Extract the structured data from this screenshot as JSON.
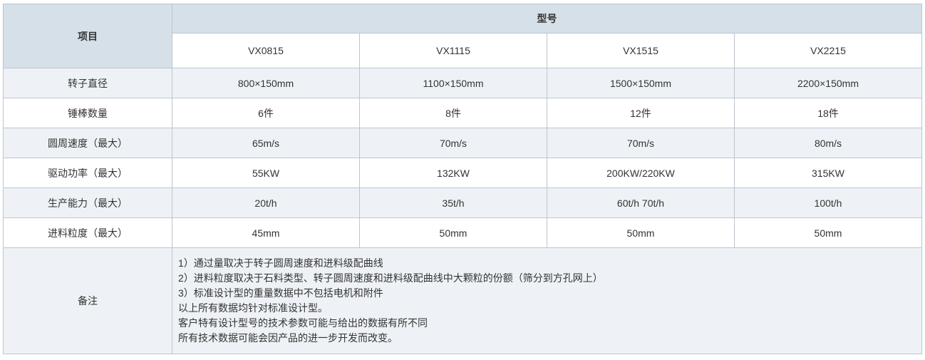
{
  "table": {
    "corner_header": "项目",
    "model_group_header": "型号",
    "models": [
      "VX0815",
      "VX1115",
      "VX1515",
      "VX2215"
    ],
    "rows": [
      {
        "label": "转子直径",
        "values": [
          "800×150mm",
          "1100×150mm",
          "1500×150mm",
          "2200×150mm"
        ]
      },
      {
        "label": "锤棒数量",
        "values": [
          "6件",
          "8件",
          "12件",
          "18件"
        ]
      },
      {
        "label": "圆周速度（最大）",
        "values": [
          "65m/s",
          "70m/s",
          "70m/s",
          "80m/s"
        ]
      },
      {
        "label": "驱动功率（最大）",
        "values": [
          "55KW",
          "132KW",
          "200KW/220KW",
          "315KW"
        ]
      },
      {
        "label": "生产能力（最大）",
        "values": [
          "20t/h",
          "35t/h",
          "60t/h 70t/h",
          "100t/h"
        ]
      },
      {
        "label": "进料粒度（最大）",
        "values": [
          "45mm",
          "50mm",
          "50mm",
          "50mm"
        ]
      }
    ],
    "remarks": {
      "label": "备注",
      "lines": [
        "1）通过量取决于转子圆周速度和进料级配曲线",
        "2）进料粒度取决于石料类型、转子圆周速度和进料级配曲线中大颗粒的份额（筛分到方孔网上）",
        "3）标准设计型的重量数据中不包括电机和附件",
        "以上所有数据均针对标准设计型。",
        "客户特有设计型号的技术参数可能与给出的数据有所不同",
        "所有技术数据可能会因产品的进一步开发而改变。"
      ]
    }
  },
  "colors": {
    "header_bg": "#d6e0e9",
    "stripe_bg": "#eef2f6",
    "border": "#bcc5ce",
    "text": "#333333"
  }
}
